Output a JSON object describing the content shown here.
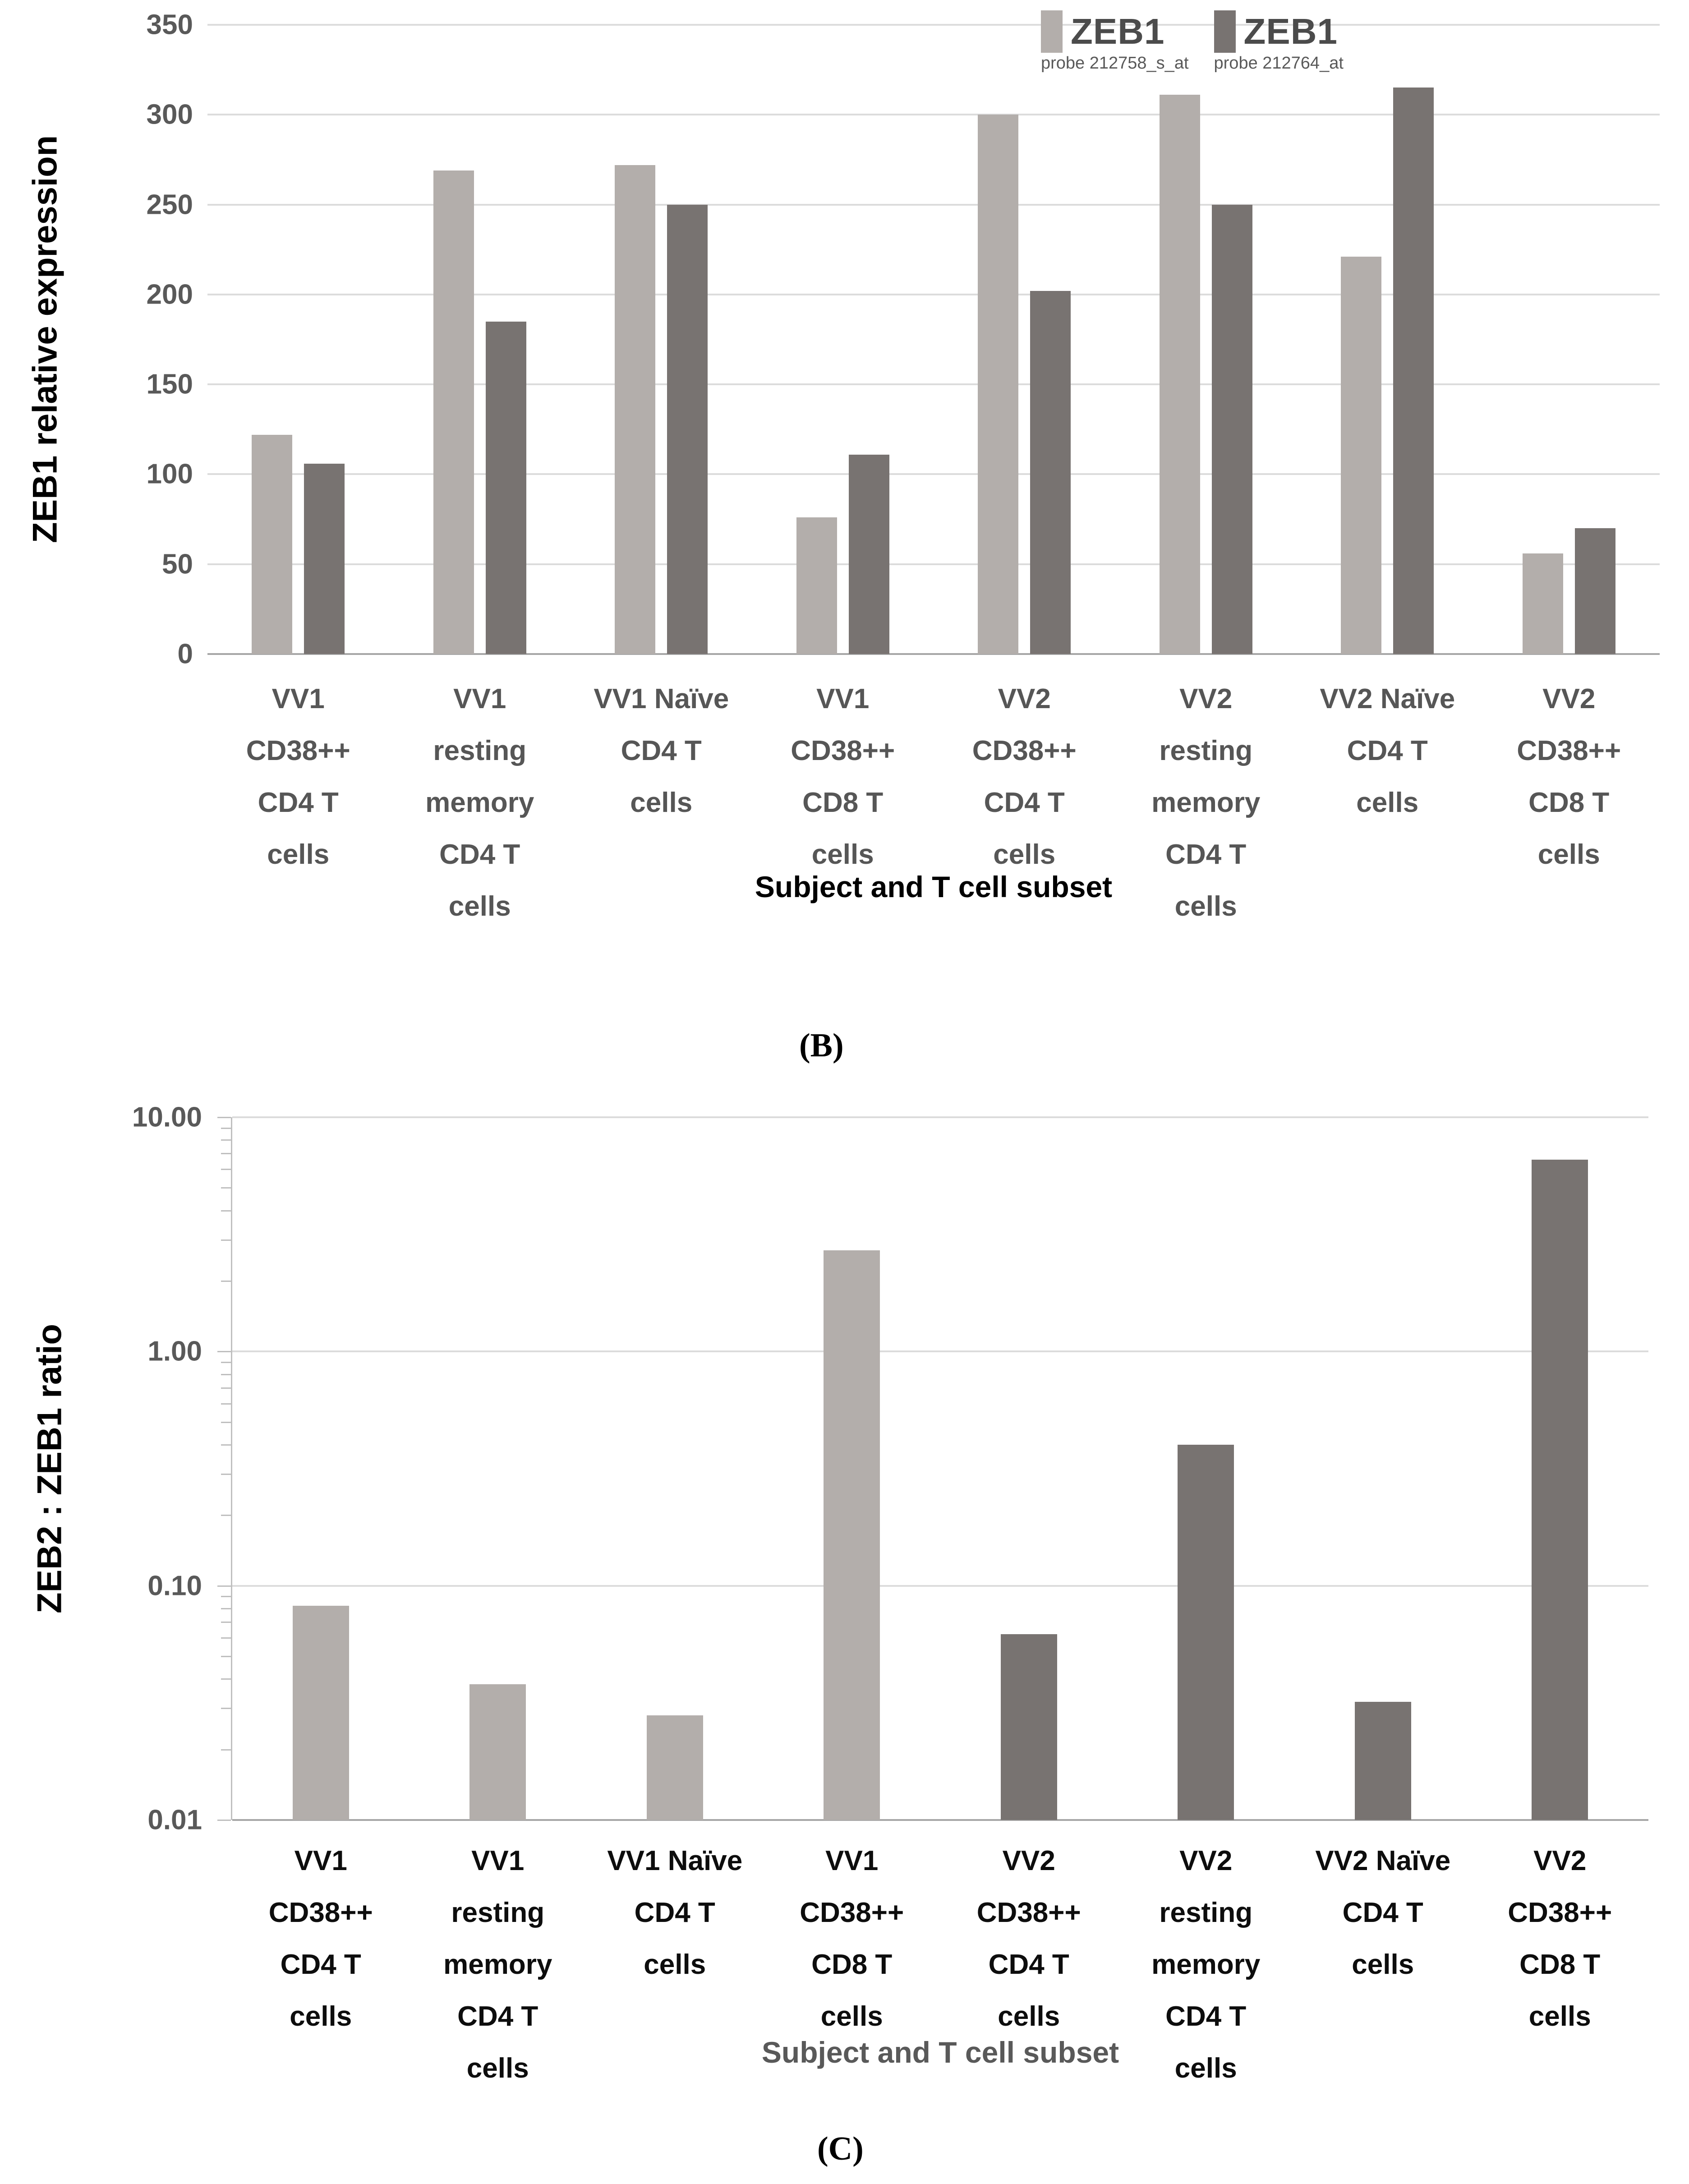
{
  "colors": {
    "light_bar": "#b3aeab",
    "dark_bar": "#787371",
    "gridline": "#dcdcdc",
    "axis_line": "#a6a6a6",
    "tick_text": "#595959",
    "top_category_text": "#565656",
    "bottom_category_text": "#0d0d0d"
  },
  "panel_b": {
    "label": "(B)"
  },
  "panel_c": {
    "label": "(C)"
  },
  "chart_data": [
    {
      "id": "panel_b_zeb1_expression",
      "type": "bar",
      "title": "",
      "ylabel": "ZEB1 relative expression",
      "xlabel": "Subject and T cell subset",
      "ylim": [
        0,
        350
      ],
      "yticks": [
        350,
        300,
        250,
        200,
        150,
        100,
        50,
        0
      ],
      "grid": true,
      "legend_position": "top-right",
      "legend": [
        {
          "label": "ZEB1",
          "sub": "probe 212758_s_at",
          "color": "#b3aeab"
        },
        {
          "label": "ZEB1",
          "sub": "probe 212764_at",
          "color": "#787371"
        }
      ],
      "categories": [
        "VV1\nCD38++\nCD4 T\ncells",
        "VV1\nresting\nmemory\nCD4 T\ncells",
        "VV1 Naïve\nCD4 T\ncells",
        "VV1\nCD38++\nCD8 T\ncells",
        "VV2\nCD38++\nCD4 T\ncells",
        "VV2\nresting\nmemory\nCD4 T\ncells",
        "VV2 Naïve\nCD4 T\ncells",
        "VV2\nCD38++\nCD8 T\ncells"
      ],
      "series": [
        {
          "name": "ZEB1 probe 212758_s_at",
          "color": "#b3aeab",
          "values": [
            122,
            269,
            272,
            76,
            300,
            311,
            221,
            56
          ]
        },
        {
          "name": "ZEB1 probe 212764_at",
          "color": "#787371",
          "values": [
            106,
            185,
            250,
            111,
            202,
            250,
            315,
            70
          ]
        }
      ]
    },
    {
      "id": "panel_c_zeb2_zeb1_ratio",
      "type": "bar",
      "title": "",
      "yscale": "log",
      "ylabel": "ZEB2 : ZEB1 ratio",
      "xlabel": "Subject and T cell subset",
      "ylim": [
        0.01,
        10
      ],
      "ytick_labels": [
        "10.00",
        "1.00",
        "0.10",
        "0.01"
      ],
      "grid": true,
      "categories": [
        "VV1\nCD38++\nCD4 T\ncells",
        "VV1\nresting\nmemory\nCD4 T\ncells",
        "VV1 Naïve\nCD4 T\ncells",
        "VV1\nCD38++\nCD8 T\ncells",
        "VV2\nCD38++\nCD4 T\ncells",
        "VV2\nresting\nmemory\nCD4 T\ncells",
        "VV2 Naïve\nCD4 T\ncells",
        "VV2\nCD38++\nCD8 T\ncells"
      ],
      "series": [
        {
          "name": "ZEB2 : ZEB1 ratio",
          "values": [
            0.082,
            0.038,
            0.028,
            2.7,
            0.062,
            0.4,
            0.032,
            6.6
          ],
          "bar_colors": [
            "#b3aeab",
            "#b3aeab",
            "#b3aeab",
            "#b3aeab",
            "#787371",
            "#787371",
            "#787371",
            "#787371"
          ]
        }
      ]
    }
  ]
}
